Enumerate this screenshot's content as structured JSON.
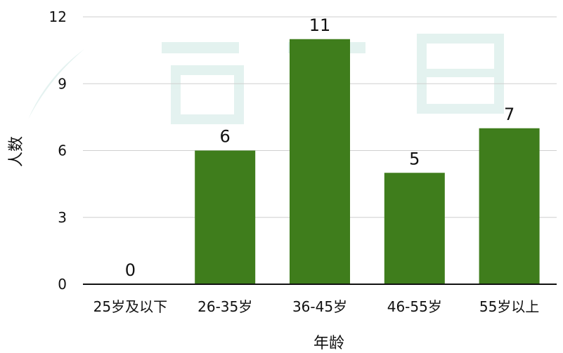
{
  "chart_data": {
    "type": "bar",
    "categories": [
      "25岁及以下",
      "26-35岁",
      "36-45岁",
      "46-55岁",
      "55岁以上"
    ],
    "values": [
      0,
      6,
      11,
      5,
      7
    ],
    "xlabel": "年龄",
    "ylabel": "人数",
    "ylim": [
      0,
      12
    ],
    "yticks": [
      0,
      3,
      6,
      9,
      12
    ],
    "grid": true,
    "data_labels": true,
    "colors": {
      "bar": "#3f7d1c",
      "grid": "#cfcfcf",
      "axis": "#111111",
      "watermark": "#2e9e8e"
    }
  }
}
